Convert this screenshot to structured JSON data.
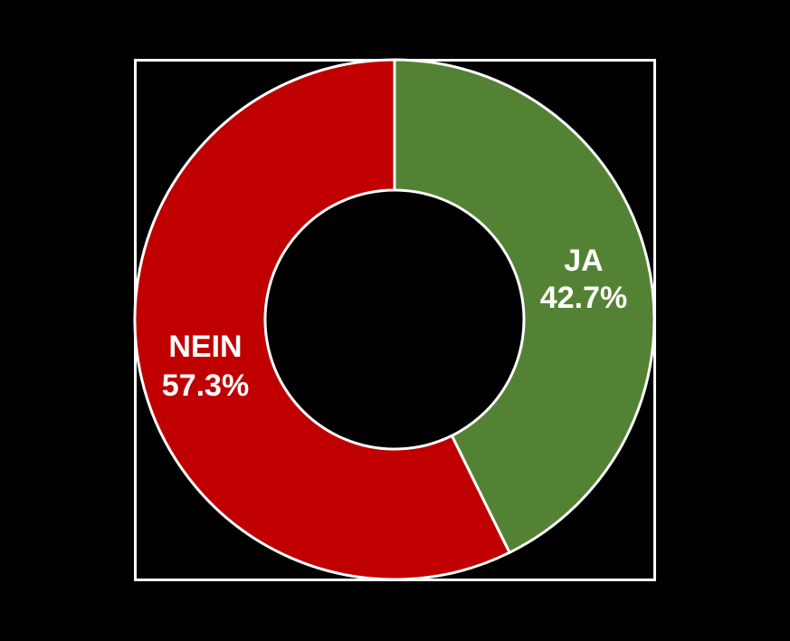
{
  "chart_data": {
    "type": "pie",
    "variant": "donut",
    "title": "",
    "categories": [
      "JA",
      "NEIN"
    ],
    "values": [
      42.7,
      57.3
    ],
    "unit": "%",
    "colors": [
      "#548235",
      "#C00000"
    ],
    "labels": [
      {
        "name": "JA",
        "value": "42.7%"
      },
      {
        "name": "NEIN",
        "value": "57.3%"
      }
    ],
    "legend": "none",
    "start_angle_deg": 0,
    "direction": "clockwise"
  },
  "style": {
    "background": "#000000",
    "frame_color": "#FFFFFF",
    "separator_color": "#FFFFFF"
  }
}
